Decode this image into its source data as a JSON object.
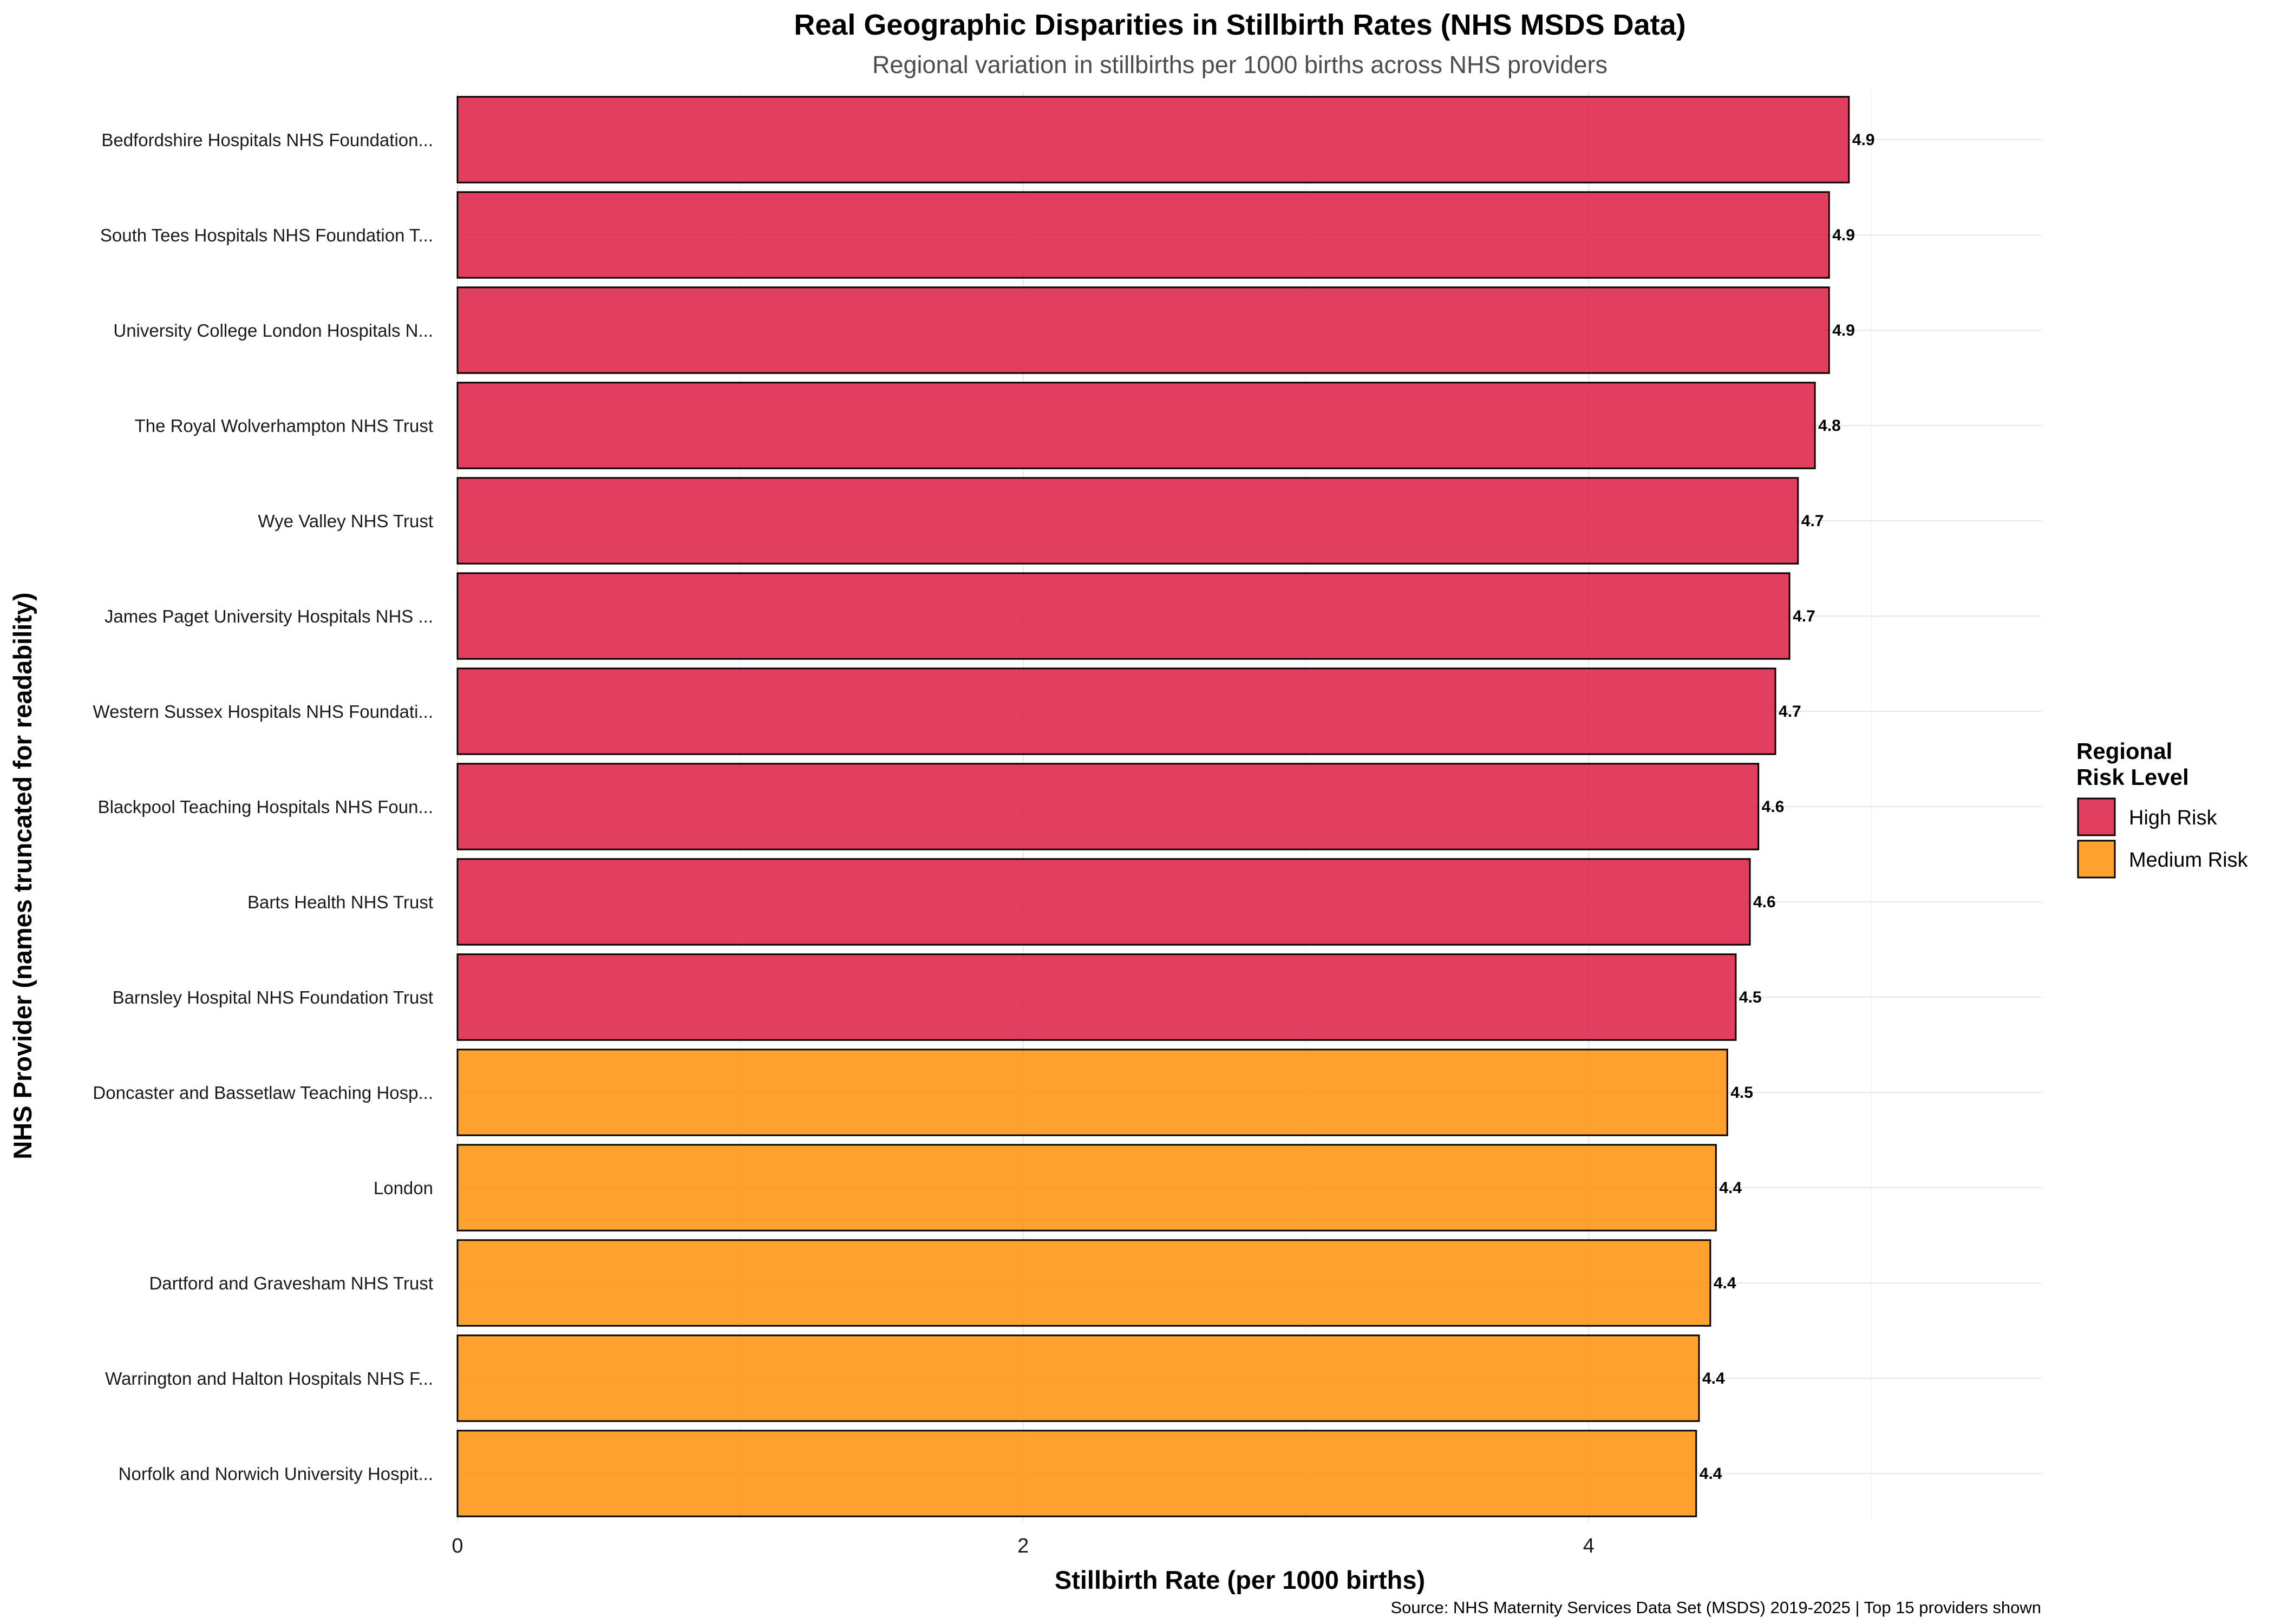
{
  "chart_data": {
    "type": "bar",
    "orientation": "horizontal",
    "title": "Real Geographic Disparities in Stillbirth Rates (NHS MSDS Data)",
    "subtitle": "Regional variation in stillbirths per 1000 births across NHS providers",
    "xlabel": "Stillbirth Rate (per 1000 births)",
    "ylabel": "NHS Provider (names truncated for readability)",
    "caption": "Source: NHS Maternity Services Data Set (MSDS) 2019-2025 | Top 15 providers shown",
    "xlim": [
      0,
      5.6
    ],
    "x_ticks": [
      "0",
      "2",
      "4"
    ],
    "x_tick_values": [
      0,
      2,
      4
    ],
    "grid": true,
    "legend": {
      "title_lines": [
        "Regional",
        "Risk Level"
      ],
      "placement": "right",
      "items": [
        {
          "label": "High Risk",
          "color": "#DC143C"
        },
        {
          "label": "Medium Risk",
          "color": "#FF8C00"
        }
      ]
    },
    "colors": {
      "High Risk": "#DC143C",
      "Medium Risk": "#FF8C00"
    },
    "bars": [
      {
        "category": "Bedfordshire Hospitals NHS Foundation...",
        "value": 4.92,
        "label": "4.9",
        "group": "High Risk"
      },
      {
        "category": "South Tees Hospitals NHS Foundation T...",
        "value": 4.85,
        "label": "4.9",
        "group": "High Risk"
      },
      {
        "category": "University College London Hospitals N...",
        "value": 4.85,
        "label": "4.9",
        "group": "High Risk"
      },
      {
        "category": "The Royal Wolverhampton NHS Trust",
        "value": 4.8,
        "label": "4.8",
        "group": "High Risk"
      },
      {
        "category": "Wye Valley NHS Trust",
        "value": 4.74,
        "label": "4.7",
        "group": "High Risk"
      },
      {
        "category": "James Paget University Hospitals NHS ...",
        "value": 4.71,
        "label": "4.7",
        "group": "High Risk"
      },
      {
        "category": "Western Sussex Hospitals NHS Foundati...",
        "value": 4.66,
        "label": "4.7",
        "group": "High Risk"
      },
      {
        "category": "Blackpool Teaching Hospitals NHS Foun...",
        "value": 4.6,
        "label": "4.6",
        "group": "High Risk"
      },
      {
        "category": "Barts Health NHS Trust",
        "value": 4.57,
        "label": "4.6",
        "group": "High Risk"
      },
      {
        "category": "Barnsley Hospital NHS Foundation Trust",
        "value": 4.52,
        "label": "4.5",
        "group": "High Risk"
      },
      {
        "category": "Doncaster and Bassetlaw Teaching Hosp...",
        "value": 4.49,
        "label": "4.5",
        "group": "Medium Risk"
      },
      {
        "category": "London",
        "value": 4.45,
        "label": "4.4",
        "group": "Medium Risk"
      },
      {
        "category": "Dartford and Gravesham NHS Trust",
        "value": 4.43,
        "label": "4.4",
        "group": "Medium Risk"
      },
      {
        "category": "Warrington and Halton Hospitals NHS F...",
        "value": 4.39,
        "label": "4.4",
        "group": "Medium Risk"
      },
      {
        "category": "Norfolk and Norwich University Hospit...",
        "value": 4.38,
        "label": "4.4",
        "group": "Medium Risk"
      }
    ]
  }
}
